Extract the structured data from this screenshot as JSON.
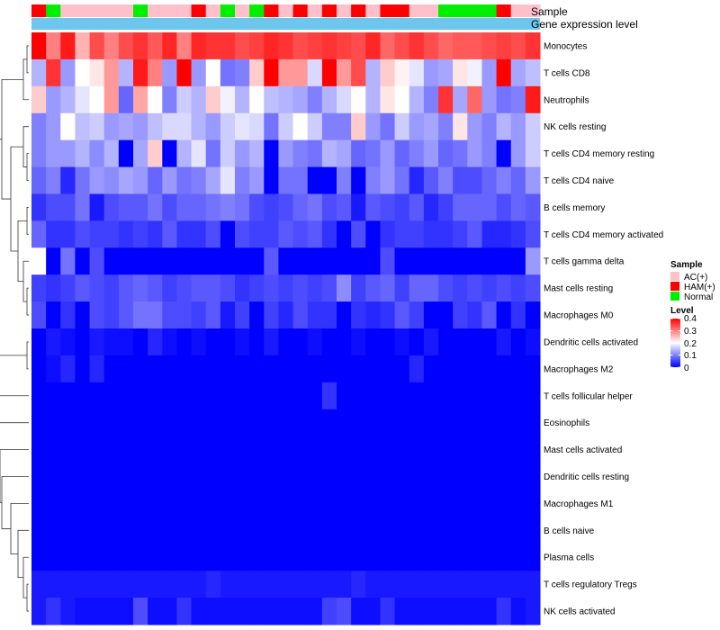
{
  "chart_data": {
    "type": "heatmap",
    "annotation_rows": [
      "Sample",
      "Gene expression level"
    ],
    "row_labels": [
      "Monocytes",
      "T cells CD8",
      "Neutrophils",
      "NK cells resting",
      "T cells CD4 memory resting",
      "T cells CD4 naive",
      "B cells memory",
      "T cells CD4 memory activated",
      "T cells gamma delta",
      "Mast cells resting",
      "Macrophages M0",
      "Dendritic cells activated",
      "Macrophages M2",
      "T cells follicular helper",
      "Eosinophils",
      "Mast cells activated",
      "Dendritic cells resting",
      "Macrophages M1",
      "B cells naive",
      "Plasma cells",
      "T cells regulatory  Tregs",
      "NK cells activated"
    ],
    "sample_groups": [
      "HAM(+)",
      "Normal",
      "AC(+)",
      "AC(+)",
      "AC(+)",
      "AC(+)",
      "AC(+)",
      "Normal",
      "AC(+)",
      "AC(+)",
      "AC(+)",
      "HAM(+)",
      "AC(+)",
      "Normal",
      "AC(+)",
      "Normal",
      "HAM(+)",
      "AC(+)",
      "HAM(+)",
      "AC(+)",
      "HAM(+)",
      "AC(+)",
      "HAM(+)",
      "AC(+)",
      "HAM(+)",
      "HAM(+)",
      "AC(+)",
      "AC(+)",
      "Normal",
      "Normal",
      "Normal",
      "Normal",
      "HAM(+)",
      "AC(+)",
      "AC(+)"
    ],
    "expression_level_color": "#6ec6ee",
    "values": [
      [
        0.4,
        0.3,
        0.38,
        0.26,
        0.34,
        0.3,
        0.34,
        0.36,
        0.33,
        0.37,
        0.3,
        0.37,
        0.36,
        0.36,
        0.34,
        0.35,
        0.37,
        0.36,
        0.34,
        0.35,
        0.36,
        0.35,
        0.34,
        0.37,
        0.32,
        0.34,
        0.36,
        0.34,
        0.32,
        0.33,
        0.33,
        0.34,
        0.35,
        0.34,
        0.36
      ],
      [
        0.14,
        0.36,
        0.12,
        0.2,
        0.22,
        0.28,
        0.14,
        0.38,
        0.3,
        0.12,
        0.4,
        0.12,
        0.2,
        0.09,
        0.1,
        0.24,
        0.4,
        0.28,
        0.28,
        0.17,
        0.41,
        0.28,
        0.34,
        0.14,
        0.24,
        0.21,
        0.18,
        0.12,
        0.13,
        0.22,
        0.19,
        0.12,
        0.4,
        0.13,
        0.15
      ],
      [
        0.24,
        0.12,
        0.14,
        0.18,
        0.2,
        0.28,
        0.08,
        0.27,
        0.2,
        0.1,
        0.16,
        0.14,
        0.24,
        0.19,
        0.14,
        0.2,
        0.15,
        0.14,
        0.13,
        0.1,
        0.14,
        0.17,
        0.2,
        0.14,
        0.22,
        0.2,
        0.14,
        0.1,
        0.36,
        0.13,
        0.32,
        0.12,
        0.09,
        0.1,
        0.38
      ],
      [
        0.1,
        0.12,
        0.2,
        0.15,
        0.16,
        0.12,
        0.13,
        0.12,
        0.15,
        0.17,
        0.17,
        0.14,
        0.12,
        0.16,
        0.18,
        0.17,
        0.09,
        0.16,
        0.2,
        0.16,
        0.1,
        0.1,
        0.24,
        0.12,
        0.09,
        0.16,
        0.12,
        0.13,
        0.1,
        0.22,
        0.12,
        0.1,
        0.14,
        0.12,
        0.16
      ],
      [
        0.1,
        0.12,
        0.12,
        0.14,
        0.11,
        0.14,
        0.0,
        0.13,
        0.24,
        0.0,
        0.14,
        0.18,
        0.09,
        0.16,
        0.12,
        0.14,
        0.0,
        0.12,
        0.1,
        0.09,
        0.14,
        0.13,
        0.08,
        0.09,
        0.12,
        0.08,
        0.1,
        0.12,
        0.08,
        0.09,
        0.12,
        0.1,
        0.0,
        0.12,
        0.16
      ],
      [
        0.08,
        0.1,
        0.03,
        0.09,
        0.12,
        0.11,
        0.13,
        0.12,
        0.08,
        0.12,
        0.09,
        0.1,
        0.13,
        0.18,
        0.1,
        0.12,
        0.0,
        0.09,
        0.09,
        0.0,
        0.0,
        0.1,
        0.0,
        0.1,
        0.12,
        0.09,
        0.03,
        0.07,
        0.1,
        0.06,
        0.06,
        0.08,
        0.1,
        0.08,
        0.12
      ],
      [
        0.04,
        0.06,
        0.06,
        0.09,
        0.02,
        0.06,
        0.07,
        0.07,
        0.09,
        0.06,
        0.08,
        0.08,
        0.09,
        0.1,
        0.09,
        0.06,
        0.05,
        0.06,
        0.08,
        0.09,
        0.06,
        0.07,
        0.02,
        0.07,
        0.06,
        0.05,
        0.07,
        0.03,
        0.05,
        0.08,
        0.08,
        0.08,
        0.06,
        0.08,
        0.07
      ],
      [
        0.08,
        0.04,
        0.04,
        0.06,
        0.05,
        0.05,
        0.04,
        0.05,
        0.04,
        0.07,
        0.04,
        0.04,
        0.06,
        0.0,
        0.06,
        0.05,
        0.05,
        0.07,
        0.06,
        0.07,
        0.04,
        0.0,
        0.06,
        0.0,
        0.04,
        0.05,
        0.05,
        0.04,
        0.04,
        0.05,
        0.07,
        0.03,
        0.03,
        0.04,
        0.06
      ],
      [
        0.2,
        0.0,
        0.09,
        0.0,
        0.06,
        0.0,
        0.0,
        0.0,
        0.0,
        0.0,
        0.0,
        0.0,
        0.0,
        0.0,
        0.0,
        0.0,
        0.07,
        0.0,
        0.0,
        0.0,
        0.0,
        0.0,
        0.0,
        0.0,
        0.06,
        0.0,
        0.0,
        0.0,
        0.0,
        0.0,
        0.0,
        0.0,
        0.0,
        0.0,
        0.12
      ],
      [
        0.05,
        0.04,
        0.05,
        0.07,
        0.06,
        0.05,
        0.07,
        0.08,
        0.07,
        0.05,
        0.06,
        0.07,
        0.07,
        0.06,
        0.04,
        0.05,
        0.06,
        0.05,
        0.06,
        0.05,
        0.06,
        0.11,
        0.05,
        0.07,
        0.08,
        0.05,
        0.08,
        0.08,
        0.06,
        0.05,
        0.06,
        0.05,
        0.06,
        0.05,
        0.06
      ],
      [
        0.06,
        0.0,
        0.04,
        0.0,
        0.06,
        0.05,
        0.07,
        0.09,
        0.09,
        0.06,
        0.06,
        0.05,
        0.07,
        0.02,
        0.05,
        0.0,
        0.05,
        0.03,
        0.06,
        0.04,
        0.04,
        0.0,
        0.04,
        0.03,
        0.04,
        0.07,
        0.05,
        0.0,
        0.0,
        0.05,
        0.04,
        0.07,
        0.0,
        0.04,
        0.0
      ],
      [
        0.0,
        0.02,
        0.01,
        0.0,
        0.02,
        0.01,
        0.01,
        0.0,
        0.03,
        0.01,
        0.0,
        0.01,
        0.0,
        0.0,
        0.01,
        0.0,
        0.02,
        0.0,
        0.0,
        0.01,
        0.0,
        0.0,
        0.01,
        0.0,
        0.0,
        0.01,
        0.0,
        0.02,
        0.0,
        0.0,
        0.0,
        0.0,
        0.02,
        0.0,
        0.01
      ],
      [
        0.0,
        0.01,
        0.03,
        0.0,
        0.03,
        0.0,
        0.0,
        0.0,
        0.0,
        0.0,
        0.0,
        0.0,
        0.0,
        0.0,
        0.0,
        0.0,
        0.0,
        0.0,
        0.0,
        0.0,
        0.0,
        0.0,
        0.0,
        0.0,
        0.0,
        0.0,
        0.03,
        0.0,
        0.0,
        0.0,
        0.0,
        0.0,
        0.0,
        0.0,
        0.0
      ],
      [
        0.0,
        0.0,
        0.0,
        0.0,
        0.0,
        0.0,
        0.0,
        0.0,
        0.0,
        0.0,
        0.0,
        0.0,
        0.0,
        0.0,
        0.0,
        0.0,
        0.0,
        0.0,
        0.0,
        0.0,
        0.04,
        0.0,
        0.0,
        0.0,
        0.0,
        0.0,
        0.0,
        0.0,
        0.0,
        0.0,
        0.0,
        0.0,
        0.0,
        0.0,
        0.0
      ],
      [
        0.0,
        0.0,
        0.0,
        0.0,
        0.0,
        0.0,
        0.0,
        0.0,
        0.0,
        0.0,
        0.0,
        0.0,
        0.0,
        0.0,
        0.0,
        0.0,
        0.0,
        0.0,
        0.0,
        0.0,
        0.0,
        0.0,
        0.0,
        0.0,
        0.0,
        0.0,
        0.0,
        0.0,
        0.0,
        0.0,
        0.0,
        0.0,
        0.0,
        0.0,
        0.0
      ],
      [
        0.0,
        0.0,
        0.0,
        0.0,
        0.0,
        0.0,
        0.0,
        0.0,
        0.0,
        0.0,
        0.0,
        0.0,
        0.0,
        0.0,
        0.0,
        0.0,
        0.0,
        0.0,
        0.0,
        0.0,
        0.0,
        0.0,
        0.0,
        0.0,
        0.0,
        0.0,
        0.0,
        0.0,
        0.0,
        0.0,
        0.0,
        0.0,
        0.0,
        0.0,
        0.0
      ],
      [
        0.0,
        0.0,
        0.0,
        0.0,
        0.0,
        0.0,
        0.0,
        0.0,
        0.0,
        0.0,
        0.0,
        0.0,
        0.0,
        0.0,
        0.0,
        0.0,
        0.0,
        0.0,
        0.0,
        0.0,
        0.0,
        0.0,
        0.0,
        0.0,
        0.0,
        0.0,
        0.0,
        0.0,
        0.0,
        0.0,
        0.0,
        0.0,
        0.0,
        0.0,
        0.0
      ],
      [
        0.0,
        0.0,
        0.0,
        0.0,
        0.0,
        0.0,
        0.0,
        0.0,
        0.0,
        0.0,
        0.0,
        0.0,
        0.0,
        0.0,
        0.0,
        0.0,
        0.0,
        0.0,
        0.0,
        0.0,
        0.0,
        0.0,
        0.0,
        0.0,
        0.0,
        0.0,
        0.0,
        0.0,
        0.0,
        0.0,
        0.0,
        0.0,
        0.0,
        0.0,
        0.0
      ],
      [
        0.0,
        0.0,
        0.0,
        0.0,
        0.0,
        0.0,
        0.0,
        0.0,
        0.0,
        0.0,
        0.0,
        0.0,
        0.0,
        0.0,
        0.0,
        0.0,
        0.0,
        0.0,
        0.0,
        0.0,
        0.0,
        0.0,
        0.0,
        0.0,
        0.0,
        0.0,
        0.0,
        0.0,
        0.0,
        0.0,
        0.0,
        0.0,
        0.0,
        0.0,
        0.0
      ],
      [
        0.0,
        0.0,
        0.0,
        0.0,
        0.0,
        0.0,
        0.0,
        0.0,
        0.0,
        0.0,
        0.0,
        0.0,
        0.0,
        0.0,
        0.0,
        0.0,
        0.0,
        0.0,
        0.0,
        0.0,
        0.0,
        0.0,
        0.0,
        0.0,
        0.0,
        0.0,
        0.0,
        0.0,
        0.0,
        0.0,
        0.0,
        0.0,
        0.0,
        0.0,
        0.0
      ],
      [
        0.02,
        0.02,
        0.02,
        0.02,
        0.02,
        0.02,
        0.02,
        0.02,
        0.02,
        0.02,
        0.02,
        0.02,
        0.03,
        0.02,
        0.02,
        0.02,
        0.02,
        0.02,
        0.02,
        0.02,
        0.02,
        0.02,
        0.03,
        0.02,
        0.02,
        0.02,
        0.02,
        0.02,
        0.02,
        0.02,
        0.02,
        0.02,
        0.02,
        0.02,
        0.02
      ],
      [
        0.02,
        0.04,
        0.02,
        0.01,
        0.01,
        0.01,
        0.01,
        0.06,
        0.01,
        0.01,
        0.04,
        0.01,
        0.01,
        0.01,
        0.01,
        0.01,
        0.01,
        0.01,
        0.01,
        0.01,
        0.05,
        0.06,
        0.01,
        0.01,
        0.04,
        0.01,
        0.01,
        0.01,
        0.01,
        0.01,
        0.01,
        0.01,
        0.04,
        0.01,
        0.02
      ]
    ],
    "legend": {
      "sample_title": "Sample",
      "sample_entries": [
        {
          "label": "AC(+)",
          "color": "#ffc0cb"
        },
        {
          "label": "HAM(+)",
          "color": "#ff0000"
        },
        {
          "label": "Normal",
          "color": "#00ee00"
        }
      ],
      "level_title": "Level",
      "level_ticks": [
        "0.4",
        "0.3",
        "0.2",
        "0.1",
        "0"
      ],
      "range": [
        0,
        0.4
      ],
      "colors": {
        "low": "#0000ff",
        "mid": "#ffffff",
        "high": "#ff0000"
      }
    }
  }
}
